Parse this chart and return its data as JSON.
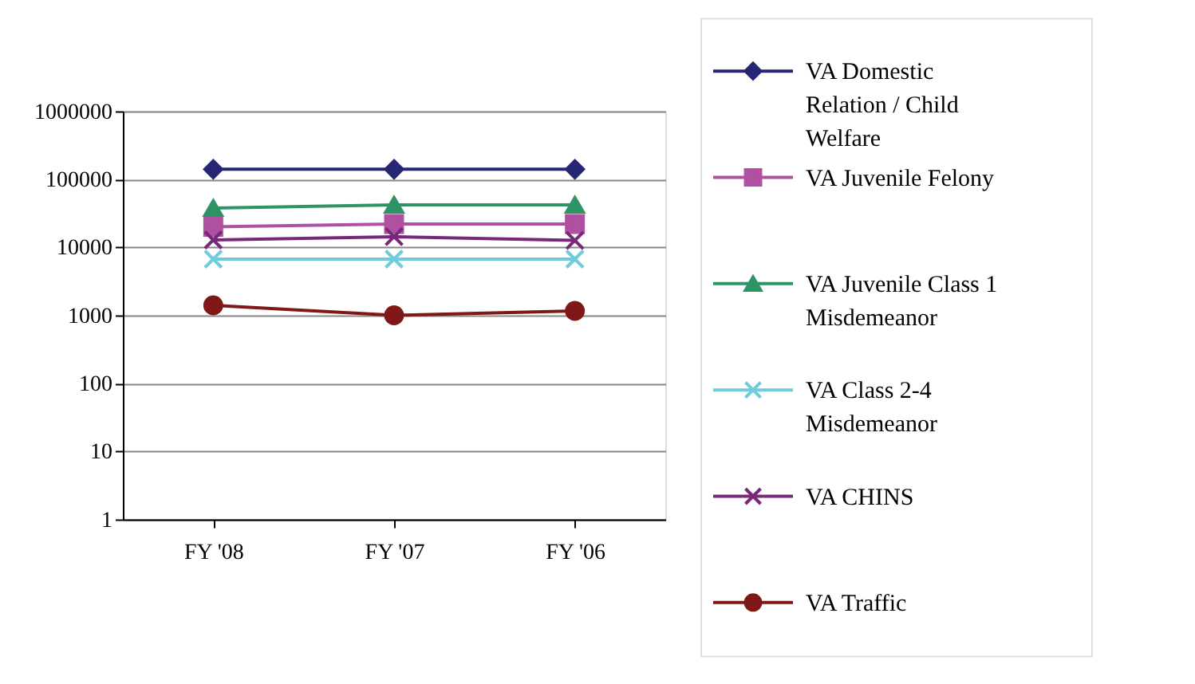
{
  "chart_data": {
    "type": "line",
    "categories": [
      "FY '08",
      "FY '07",
      "FY '06"
    ],
    "log": true,
    "ylim": [
      1,
      1000000
    ],
    "yticks": [
      1,
      10,
      100,
      1000,
      10000,
      100000,
      1000000
    ],
    "grid": "y",
    "legend": "right",
    "line_style": "solid",
    "series": [
      {
        "name": "VA Domestic Relation / Child Welfare",
        "color": "#262673",
        "marker": "diamond",
        "values": [
          140000,
          140000,
          140000
        ]
      },
      {
        "name": "VA Juvenile Felony",
        "color": "#b050a0",
        "marker": "square",
        "values": [
          20000,
          22000,
          22000
        ]
      },
      {
        "name": "VA Juvenile Class 1 Misdemeanor",
        "color": "#2e9466",
        "marker": "triangle",
        "values": [
          37700,
          42000,
          42000
        ]
      },
      {
        "name": "VA Class 2-4 Misdemeanor",
        "color": "#70ccd8",
        "marker": "cross",
        "values": [
          6700,
          6700,
          6700
        ]
      },
      {
        "name": "VA CHINS",
        "color": "#782878",
        "marker": "cross",
        "values": [
          12800,
          14300,
          12600
        ]
      },
      {
        "name": "VA Traffic",
        "color": "#801818",
        "marker": "circle",
        "values": [
          1400,
          1000,
          1160
        ]
      }
    ]
  }
}
